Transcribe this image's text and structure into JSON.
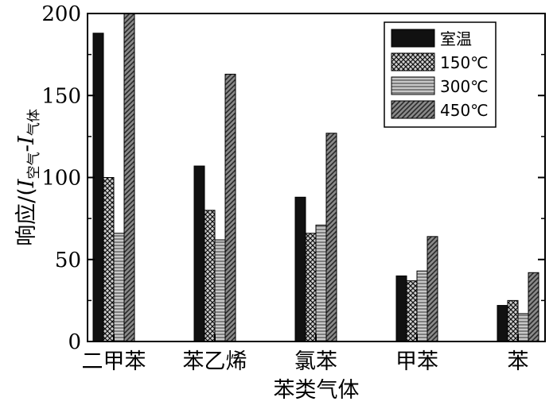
{
  "chart_data": {
    "type": "bar",
    "categories": [
      "二甲苯",
      "苯乙烯",
      "氯苯",
      "甲苯",
      "苯"
    ],
    "series": [
      {
        "name": "室温",
        "values": [
          188,
          107,
          88,
          40,
          22
        ],
        "color": "#111111",
        "pattern": "solid"
      },
      {
        "name": "150℃",
        "values": [
          100,
          80,
          66,
          37,
          25
        ],
        "color": "#3a3a3a",
        "pattern": "crosshatch"
      },
      {
        "name": "300℃",
        "values": [
          66,
          62,
          71,
          43,
          17
        ],
        "color": "#9a9a9a",
        "pattern": "horizontal-lines"
      },
      {
        "name": "450℃",
        "values": [
          200,
          163,
          127,
          64,
          42
        ],
        "color": "#5a5a5a",
        "pattern": "diagonal-lines"
      }
    ],
    "xlabel": "苯类气体",
    "ylabel": {
      "main": "响应/(",
      "i1": "I",
      "sub1": "空气",
      "dash": "-",
      "i2": "I",
      "sub2": "气体"
    },
    "ylim": [
      0,
      200
    ],
    "yticks": [
      "0",
      "50",
      "100",
      "150",
      "200"
    ],
    "grid": false,
    "legend_position": "top-right"
  }
}
